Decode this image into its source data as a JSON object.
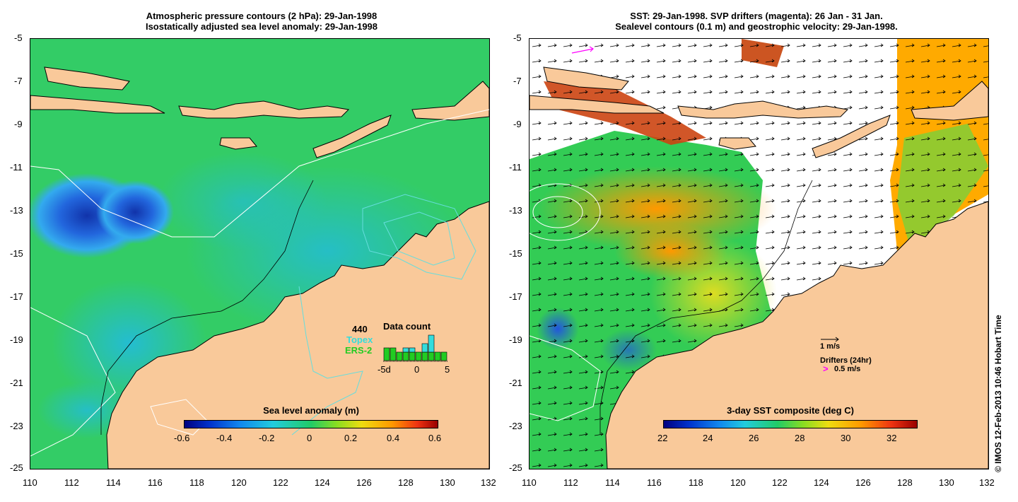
{
  "left_panel": {
    "title_line1": "Atmospheric pressure contours (2 hPa): 29-Jan-1998",
    "title_line2": "Isostatically adjusted sea level anomaly: 29-Jan-1998",
    "y_ticks": [
      "-5",
      "-7",
      "-9",
      "-11",
      "-13",
      "-15",
      "-17",
      "-19",
      "-21",
      "-23",
      "-25"
    ],
    "x_ticks": [
      "110",
      "112",
      "114",
      "116",
      "118",
      "120",
      "122",
      "124",
      "126",
      "128",
      "130",
      "132"
    ],
    "colorbar": {
      "title": "Sea level anomaly (m)",
      "ticks": [
        "-0.6",
        "-0.4",
        "-0.2",
        "0",
        "0.2",
        "0.4",
        "0.6"
      ],
      "range": [
        -0.6,
        0.6
      ]
    },
    "data_count": {
      "title": "Data count",
      "total": "440",
      "topex_label": "Topex",
      "ers_label": "ERS-2",
      "x_ticks": [
        "-5d",
        "0",
        "5"
      ],
      "topex_color": "#33dddd",
      "ers_color": "#22cc22",
      "ers_values": [
        3,
        3,
        2,
        2,
        2,
        2,
        2,
        2,
        2,
        2
      ],
      "topex_values": [
        0,
        0,
        0,
        1,
        1,
        0,
        2,
        4,
        0,
        0
      ]
    }
  },
  "right_panel": {
    "title_line1": "SST: 29-Jan-1998. SVP drifters (magenta): 26 Jan - 31 Jan.",
    "title_line2": "Sealevel contours (0.1 m) and geostrophic velocity: 29-Jan-1998.",
    "y_ticks": [
      "-5",
      "-7",
      "-9",
      "-11",
      "-13",
      "-15",
      "-17",
      "-19",
      "-21",
      "-23",
      "-25"
    ],
    "x_ticks": [
      "110",
      "112",
      "114",
      "116",
      "118",
      "120",
      "122",
      "124",
      "126",
      "128",
      "130",
      "132"
    ],
    "colorbar": {
      "title": "3-day SST composite (deg C)",
      "ticks": [
        "22",
        "24",
        "26",
        "28",
        "30",
        "32"
      ],
      "range": [
        22,
        33
      ]
    },
    "legend": {
      "scale_label": "1 m/s",
      "drifters_label": "Drifters (24hr)",
      "drifter_speed_label": "0.5 m/s",
      "drifter_color": "#ff00ff"
    }
  },
  "credit": "© IMOS 12-Feb-2013 10:46 Hobart Time",
  "colors": {
    "land": "#f9c99a",
    "ocean_green": "#33cc66",
    "ocean_blue": "#2299ee",
    "contour": "#66dddd"
  }
}
